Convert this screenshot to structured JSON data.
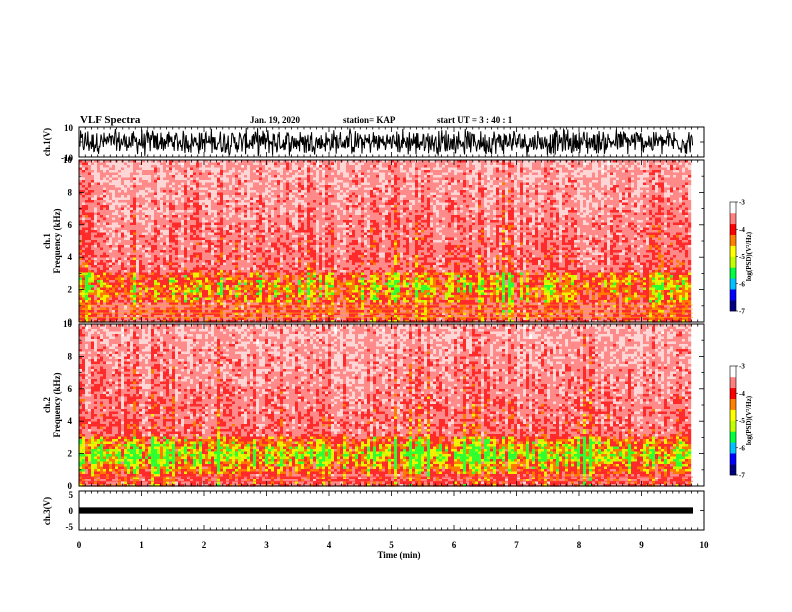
{
  "header": {
    "title": "VLF Spectra",
    "date": "Jan. 19, 2020",
    "station": "station= KAP",
    "start_ut": "start  UT =   3  : 40 : 1"
  },
  "colors": {
    "background": "#ffffff",
    "axes": "#000000",
    "spectrogram_low": "#ffffff",
    "spectrogram_mid": "#ff2020",
    "spectrogram_high": "#ffff00",
    "colormap": [
      "#000080",
      "#0000ff",
      "#00c0ff",
      "#00ff40",
      "#c0ff00",
      "#ffff00",
      "#ff8000",
      "#ff0000",
      "#ff8080",
      "#ffffff"
    ]
  },
  "chart_data": [
    {
      "type": "line",
      "panel": "ch1-waveform",
      "ylabel": "ch.1(V)",
      "ylim": [
        -10,
        10
      ],
      "yticks": [
        "10",
        "-10"
      ],
      "xlim": [
        0,
        10
      ],
      "description_values": "waveform oscillating densely between -10 and 10 V over 0–9.8 min"
    },
    {
      "type": "heatmap",
      "panel": "ch1-spectrogram",
      "ylabel": "ch.1",
      "ylabel2": "Frequency (kHz)",
      "ylim": [
        0,
        10
      ],
      "yticks": [
        "0",
        "2",
        "4",
        "6",
        "8",
        "10"
      ],
      "xlim": [
        0,
        10
      ],
      "band_khz": [
        1.2,
        3.0
      ],
      "colorbar": {
        "label": "log(PSD)(V²/Hz)",
        "ticks": [
          "-3",
          "-4",
          "-5",
          "-6",
          "-7"
        ],
        "range": [
          -7,
          -3
        ]
      }
    },
    {
      "type": "heatmap",
      "panel": "ch2-spectrogram",
      "ylabel": "ch.2",
      "ylabel2": "Frequency (kHz)",
      "ylim": [
        0,
        10
      ],
      "yticks": [
        "0",
        "2",
        "4",
        "6",
        "8",
        "10"
      ],
      "xlim": [
        0,
        10
      ],
      "band_khz": [
        0.8,
        3.0
      ],
      "colorbar": {
        "label": "log(PSD)(V²/Hz)",
        "ticks": [
          "-3",
          "-4",
          "-5",
          "-6",
          "-7"
        ],
        "range": [
          -7,
          -3
        ]
      }
    },
    {
      "type": "line",
      "panel": "ch3-waveform",
      "ylabel": "ch.3(V)",
      "ylim": [
        -5,
        5
      ],
      "yticks": [
        "5",
        "0",
        "-5"
      ],
      "xlim": [
        0,
        10
      ],
      "xticks": [
        "0",
        "1",
        "2",
        "3",
        "4",
        "5",
        "6",
        "7",
        "8",
        "9",
        "10"
      ],
      "xlabel": "Time (min)",
      "band_v": [
        -0.8,
        0.8
      ]
    }
  ]
}
